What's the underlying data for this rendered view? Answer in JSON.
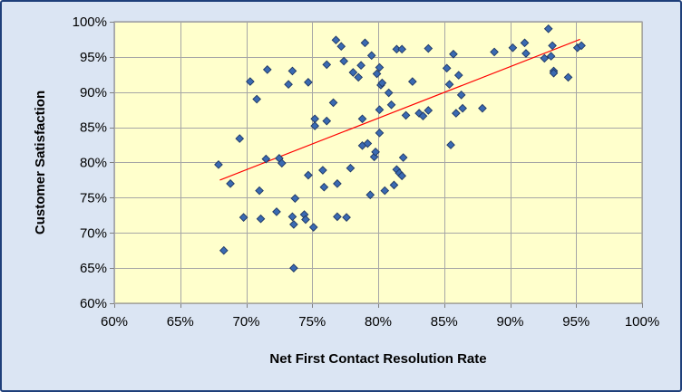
{
  "chart_data": {
    "type": "scatter",
    "title": "",
    "xlabel": "Net First Contact Resolution Rate",
    "ylabel": "Customer Satisfaction",
    "xlim": [
      0.6,
      1.0
    ],
    "ylim": [
      0.6,
      1.0
    ],
    "x_ticks": [
      "60%",
      "65%",
      "70%",
      "75%",
      "80%",
      "85%",
      "90%",
      "95%",
      "100%"
    ],
    "y_ticks": [
      "60%",
      "65%",
      "70%",
      "75%",
      "80%",
      "85%",
      "90%",
      "95%",
      "100%"
    ],
    "grid": true,
    "legend": "none",
    "colors": {
      "plot_background": "#ffffcc",
      "chart_background": "#dbe5f3",
      "border": "#1f3f7a",
      "marker_fill": "#3a6ab2",
      "marker_edge": "#1f3763",
      "trendline": "#ff0000",
      "grid": "#a6a6a6"
    },
    "trendline": {
      "x": [
        0.68,
        0.953
      ],
      "y": [
        0.775,
        0.975
      ]
    },
    "points": [
      {
        "x": 0.679,
        "y": 0.797
      },
      {
        "x": 0.683,
        "y": 0.675
      },
      {
        "x": 0.688,
        "y": 0.77
      },
      {
        "x": 0.695,
        "y": 0.834
      },
      {
        "x": 0.698,
        "y": 0.722
      },
      {
        "x": 0.703,
        "y": 0.915
      },
      {
        "x": 0.708,
        "y": 0.89
      },
      {
        "x": 0.71,
        "y": 0.76
      },
      {
        "x": 0.711,
        "y": 0.72
      },
      {
        "x": 0.715,
        "y": 0.805
      },
      {
        "x": 0.716,
        "y": 0.932
      },
      {
        "x": 0.723,
        "y": 0.73
      },
      {
        "x": 0.725,
        "y": 0.806
      },
      {
        "x": 0.727,
        "y": 0.799
      },
      {
        "x": 0.732,
        "y": 0.911
      },
      {
        "x": 0.735,
        "y": 0.93
      },
      {
        "x": 0.735,
        "y": 0.723
      },
      {
        "x": 0.736,
        "y": 0.712
      },
      {
        "x": 0.737,
        "y": 0.749
      },
      {
        "x": 0.736,
        "y": 0.65
      },
      {
        "x": 0.744,
        "y": 0.726
      },
      {
        "x": 0.745,
        "y": 0.719
      },
      {
        "x": 0.747,
        "y": 0.914
      },
      {
        "x": 0.747,
        "y": 0.782
      },
      {
        "x": 0.751,
        "y": 0.708
      },
      {
        "x": 0.752,
        "y": 0.862
      },
      {
        "x": 0.752,
        "y": 0.852
      },
      {
        "x": 0.758,
        "y": 0.789
      },
      {
        "x": 0.759,
        "y": 0.765
      },
      {
        "x": 0.761,
        "y": 0.859
      },
      {
        "x": 0.761,
        "y": 0.939
      },
      {
        "x": 0.766,
        "y": 0.885
      },
      {
        "x": 0.768,
        "y": 0.974
      },
      {
        "x": 0.769,
        "y": 0.77
      },
      {
        "x": 0.769,
        "y": 0.723
      },
      {
        "x": 0.772,
        "y": 0.965
      },
      {
        "x": 0.774,
        "y": 0.944
      },
      {
        "x": 0.776,
        "y": 0.722
      },
      {
        "x": 0.779,
        "y": 0.792
      },
      {
        "x": 0.781,
        "y": 0.928
      },
      {
        "x": 0.785,
        "y": 0.921
      },
      {
        "x": 0.787,
        "y": 0.938
      },
      {
        "x": 0.788,
        "y": 0.862
      },
      {
        "x": 0.788,
        "y": 0.824
      },
      {
        "x": 0.79,
        "y": 0.97
      },
      {
        "x": 0.792,
        "y": 0.827
      },
      {
        "x": 0.794,
        "y": 0.754
      },
      {
        "x": 0.795,
        "y": 0.952
      },
      {
        "x": 0.797,
        "y": 0.808
      },
      {
        "x": 0.798,
        "y": 0.815
      },
      {
        "x": 0.799,
        "y": 0.926
      },
      {
        "x": 0.801,
        "y": 0.875
      },
      {
        "x": 0.801,
        "y": 0.842
      },
      {
        "x": 0.801,
        "y": 0.935
      },
      {
        "x": 0.802,
        "y": 0.91
      },
      {
        "x": 0.803,
        "y": 0.913
      },
      {
        "x": 0.805,
        "y": 0.76
      },
      {
        "x": 0.808,
        "y": 0.899
      },
      {
        "x": 0.81,
        "y": 0.882
      },
      {
        "x": 0.812,
        "y": 0.768
      },
      {
        "x": 0.814,
        "y": 0.79
      },
      {
        "x": 0.814,
        "y": 0.961
      },
      {
        "x": 0.816,
        "y": 0.785
      },
      {
        "x": 0.818,
        "y": 0.781
      },
      {
        "x": 0.818,
        "y": 0.961
      },
      {
        "x": 0.819,
        "y": 0.807
      },
      {
        "x": 0.821,
        "y": 0.867
      },
      {
        "x": 0.826,
        "y": 0.915
      },
      {
        "x": 0.831,
        "y": 0.87
      },
      {
        "x": 0.834,
        "y": 0.866
      },
      {
        "x": 0.838,
        "y": 0.962
      },
      {
        "x": 0.838,
        "y": 0.874
      },
      {
        "x": 0.852,
        "y": 0.934
      },
      {
        "x": 0.854,
        "y": 0.911
      },
      {
        "x": 0.855,
        "y": 0.825
      },
      {
        "x": 0.857,
        "y": 0.954
      },
      {
        "x": 0.859,
        "y": 0.87
      },
      {
        "x": 0.861,
        "y": 0.924
      },
      {
        "x": 0.863,
        "y": 0.896
      },
      {
        "x": 0.864,
        "y": 0.877
      },
      {
        "x": 0.879,
        "y": 0.877
      },
      {
        "x": 0.888,
        "y": 0.957
      },
      {
        "x": 0.902,
        "y": 0.963
      },
      {
        "x": 0.911,
        "y": 0.97
      },
      {
        "x": 0.912,
        "y": 0.955
      },
      {
        "x": 0.926,
        "y": 0.948
      },
      {
        "x": 0.929,
        "y": 0.99
      },
      {
        "x": 0.931,
        "y": 0.951
      },
      {
        "x": 0.932,
        "y": 0.966
      },
      {
        "x": 0.933,
        "y": 0.93
      },
      {
        "x": 0.933,
        "y": 0.927
      },
      {
        "x": 0.944,
        "y": 0.921
      },
      {
        "x": 0.951,
        "y": 0.963
      },
      {
        "x": 0.954,
        "y": 0.966
      }
    ]
  }
}
